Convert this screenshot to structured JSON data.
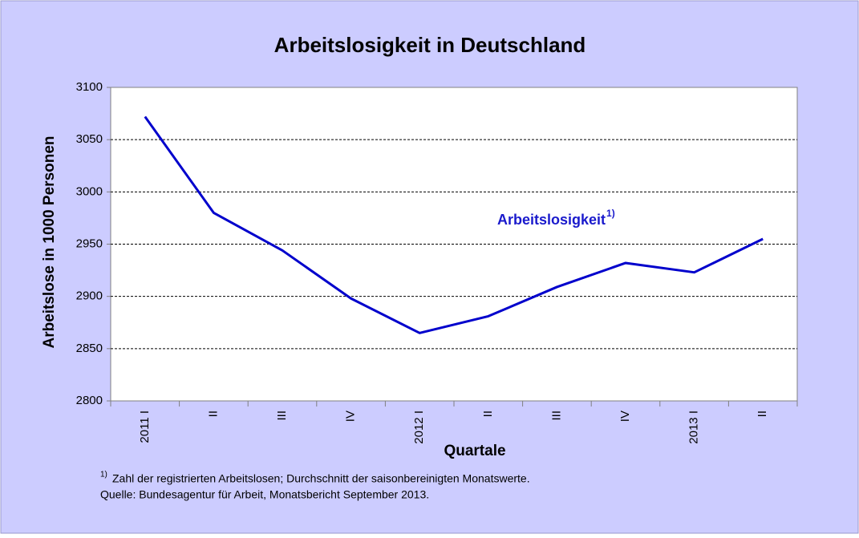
{
  "chart_data": {
    "type": "line",
    "title": "Arbeitslosigkeit in Deutschland",
    "y_label": "Arbeitslose in 1000 Personen",
    "x_label": "Quartale",
    "categories": [
      "2011 I",
      "II",
      "III",
      "IV",
      "2012 I",
      "II",
      "III",
      "IV",
      "2013 I",
      "II"
    ],
    "series": [
      {
        "name": "Arbeitslosigkeit",
        "color": "#0000cc",
        "values": [
          3072,
          2980,
          2944,
          2898,
          2865,
          2881,
          2909,
          2932,
          2923,
          2955
        ]
      }
    ],
    "series_marker": "1)",
    "ylim": [
      2800,
      3100
    ],
    "yticks": [
      2800,
      2850,
      2900,
      2950,
      3000,
      3050,
      3100
    ],
    "grid": true,
    "footnote_marker": "1)",
    "footnote": "Zahl der registrierten Arbeitslosen; Durchschnitt der saisonbereinigten Monatswerte.",
    "source": "Quelle: Bundesagentur für Arbeit, Monatsbericht September 2013."
  }
}
